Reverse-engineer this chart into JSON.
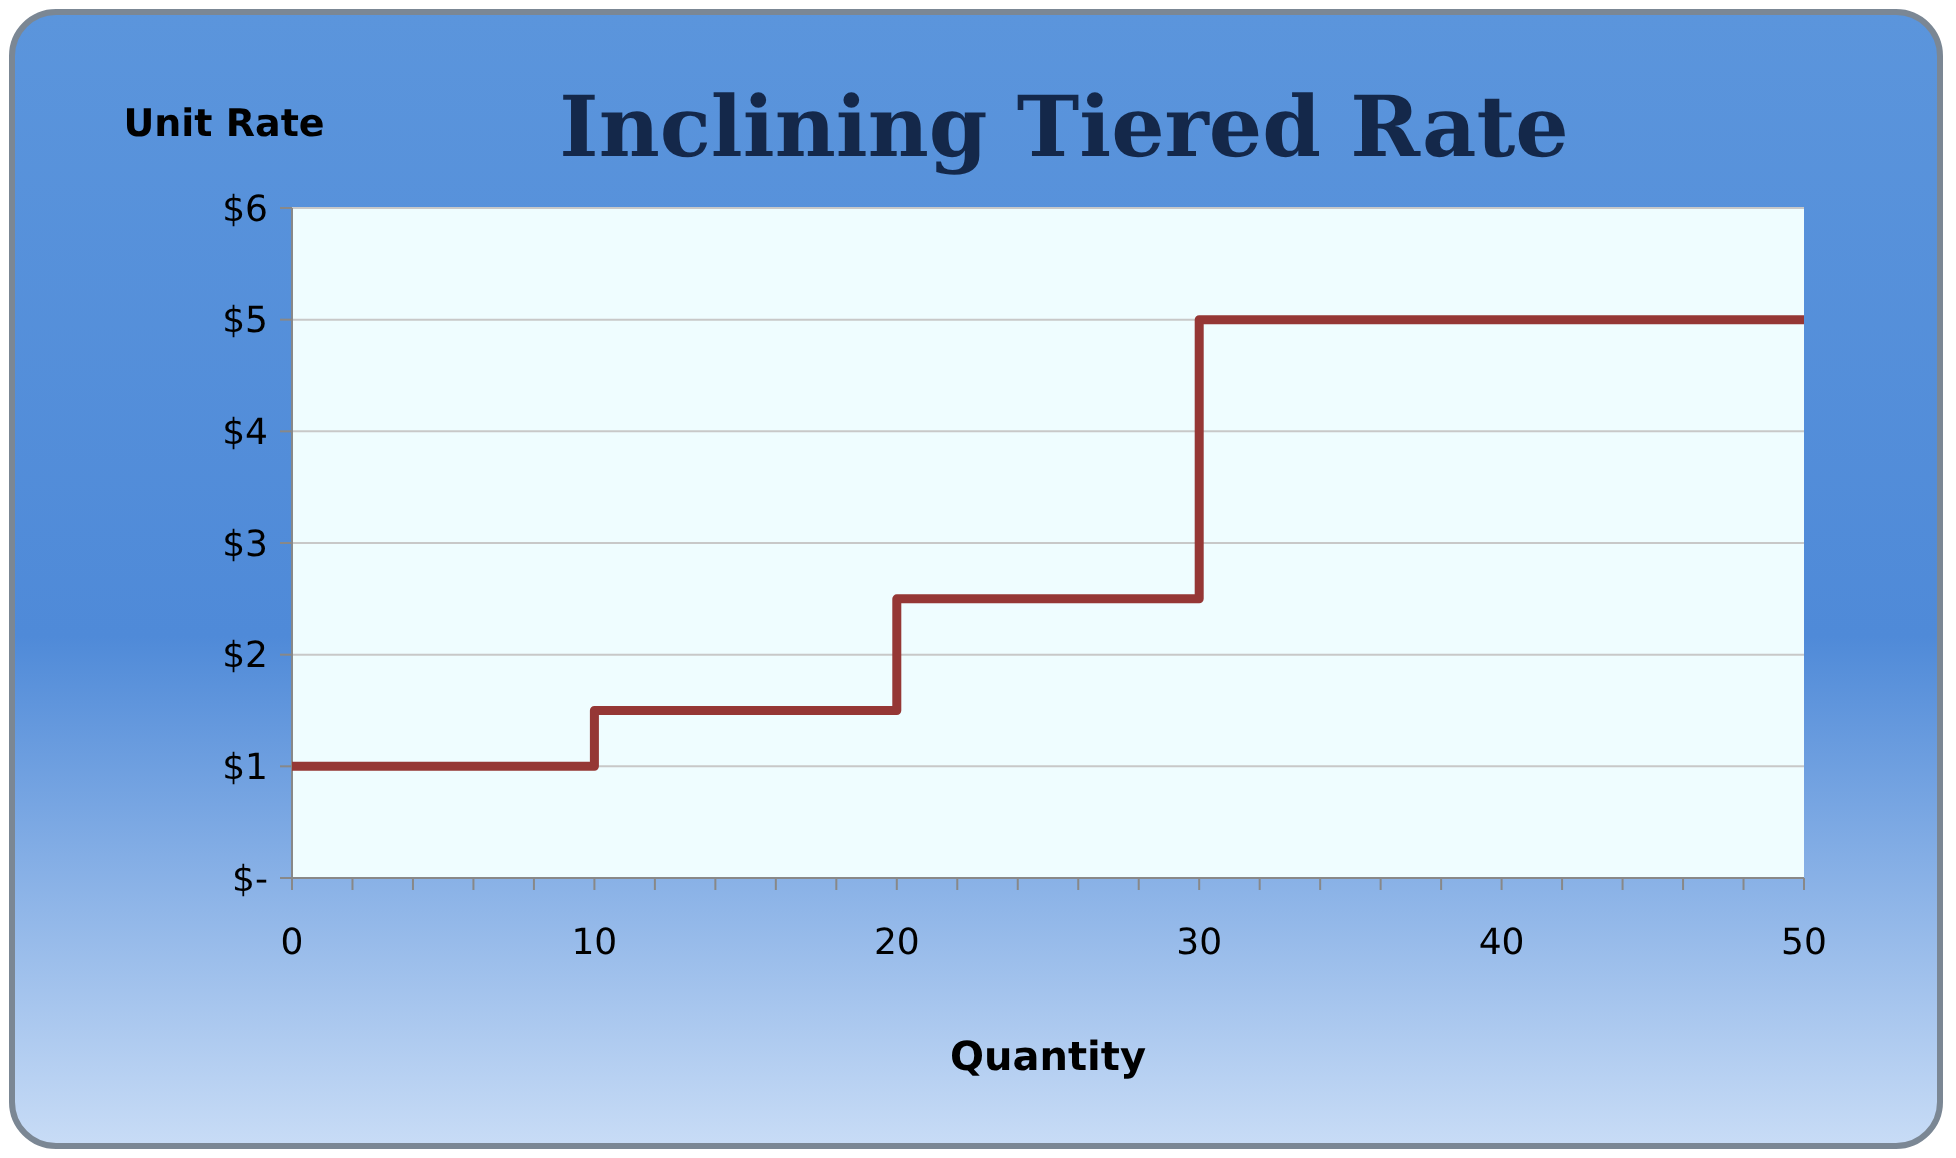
{
  "chart_data": {
    "type": "step",
    "title": "Inclining Tiered Rate",
    "xlabel": "Quantity",
    "ylabel": "Unit Rate",
    "x": [
      0,
      10,
      20,
      30,
      50
    ],
    "series": [
      {
        "color": "#953735",
        "values": [
          1,
          1.5,
          2.5,
          5,
          5
        ]
      }
    ],
    "xlim": [
      0,
      50
    ],
    "xticks": [
      0,
      {
        "value": 2,
        "label": null
      },
      {
        "value": 4,
        "label": null
      },
      {
        "value": 6,
        "label": null
      },
      {
        "value": 8,
        "label": null
      },
      10,
      {
        "value": 12,
        "label": null
      },
      {
        "value": 14,
        "label": null
      },
      {
        "value": 16,
        "label": null
      },
      {
        "value": 18,
        "label": null
      },
      20,
      {
        "value": 22,
        "label": null
      },
      {
        "value": 24,
        "label": null
      },
      {
        "value": 26,
        "label": null
      },
      {
        "value": 28,
        "label": null
      },
      30,
      {
        "value": 32,
        "label": null
      },
      {
        "value": 34,
        "label": null
      },
      {
        "value": 36,
        "label": null
      },
      {
        "value": 38,
        "label": null
      },
      40,
      {
        "value": 42,
        "label": null
      },
      {
        "value": 44,
        "label": null
      },
      {
        "value": 46,
        "label": null
      },
      {
        "value": 48,
        "label": null
      },
      50
    ],
    "ylim": [
      0,
      6
    ],
    "yticks": [
      {
        "value": 0,
        "label": "$-"
      },
      {
        "value": 1,
        "label": "$1"
      },
      {
        "value": 2,
        "label": "$2"
      },
      {
        "value": 3,
        "label": "$3"
      },
      {
        "value": 4,
        "label": "$4"
      },
      {
        "value": 5,
        "label": "$5"
      },
      {
        "value": 6,
        "label": "$6"
      }
    ],
    "grid": "y",
    "line_style": "solid",
    "marker": "none"
  }
}
